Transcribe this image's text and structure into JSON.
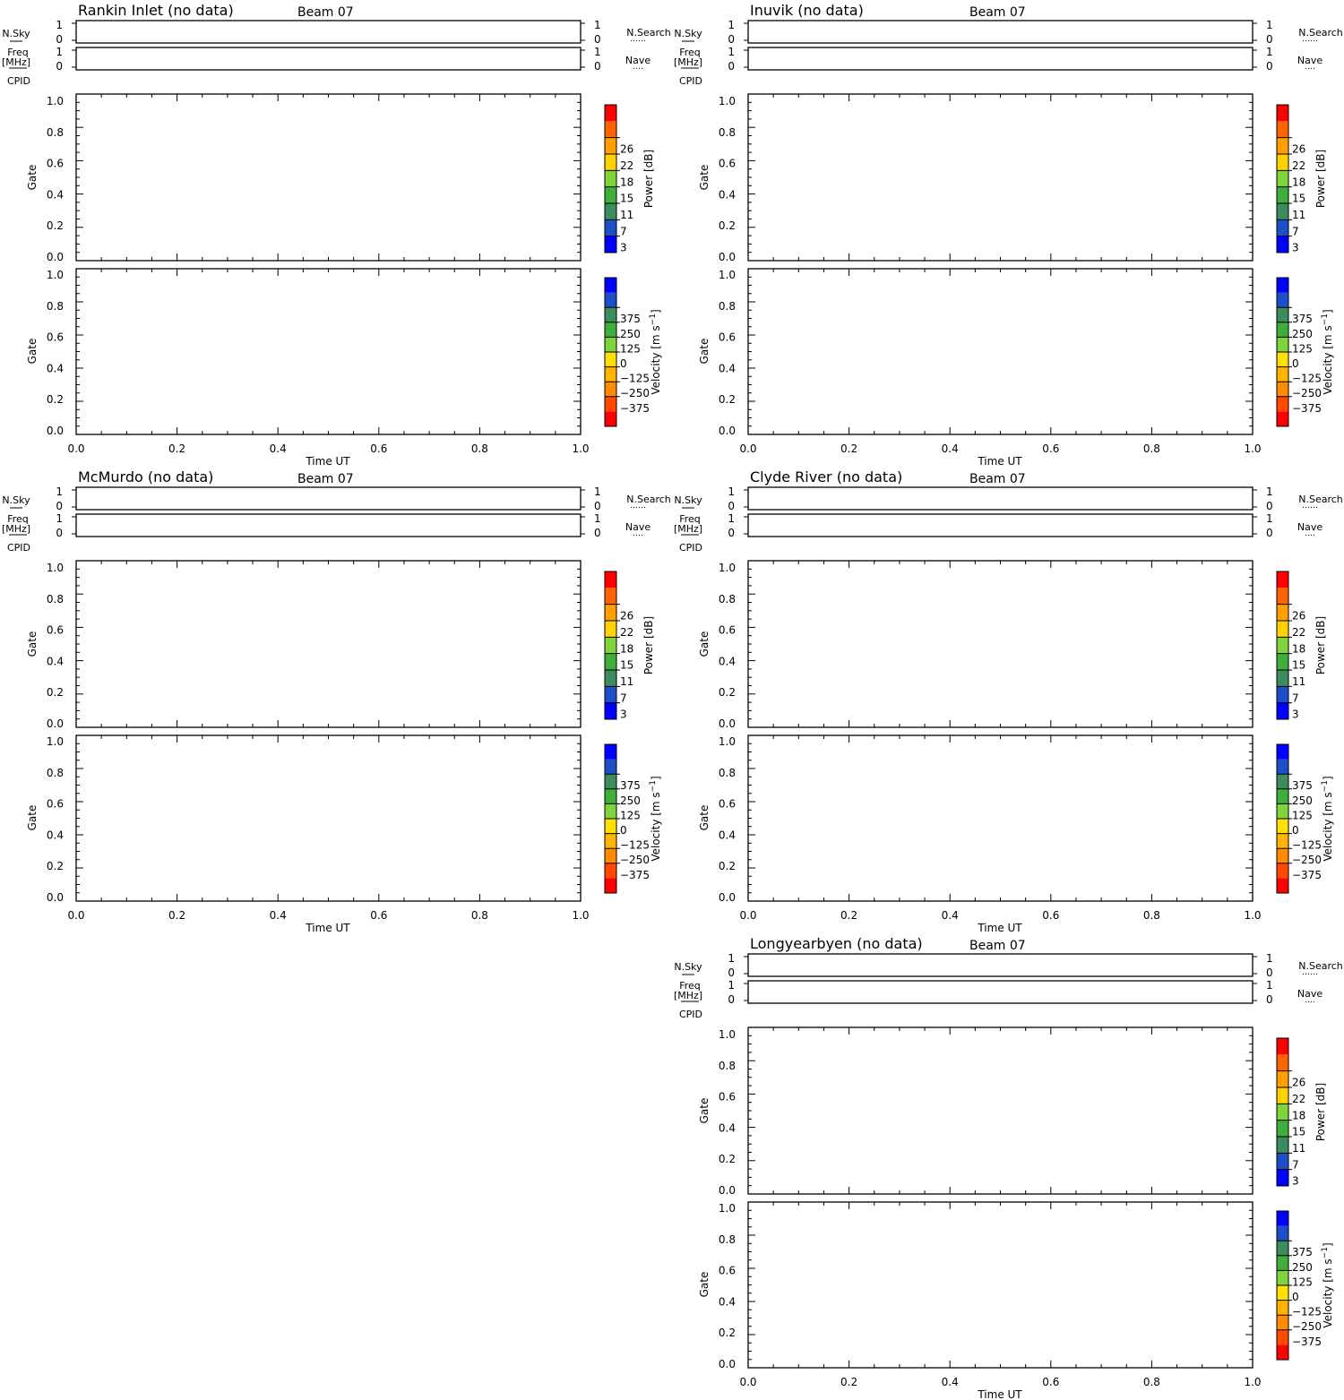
{
  "colors": {
    "power_scale": [
      "#0000ff",
      "#1e4ec8",
      "#3c8c60",
      "#3fae3c",
      "#7fd43c",
      "#ffd200",
      "#ffa000",
      "#ff6400",
      "#ff0000"
    ],
    "velocity_scale": [
      "#ff0000",
      "#ff4a00",
      "#ff8c00",
      "#ffb400",
      "#ffe000",
      "#7fd43c",
      "#3fae3c",
      "#3c8c60",
      "#1e4ec8",
      "#0000ff"
    ]
  },
  "labels": {
    "nsky": "N.Sky",
    "freq": "Freq",
    "mhz": "[MHz]",
    "cpid": "CPID",
    "nsearch": "N.Search",
    "nave": "Nave",
    "gate": "Gate",
    "time_ut": "Time UT",
    "power_label": "Power [dB]",
    "velocity_label": "Velocity [m s",
    "velocity_unit_sup": "−1",
    "velocity_label_end": "]",
    "dotted_search": "……",
    "dotted_nave": "…."
  },
  "chart_data": [
    {
      "type": "heatmap",
      "title": "Rankin Inlet (no data)",
      "beam": "Beam 07",
      "xlabel": "Time UT",
      "ylabel": "Gate",
      "xlim": [
        0,
        1
      ],
      "ylim": [
        0,
        1
      ],
      "xticks": [
        "0.0",
        "0.2",
        "0.4",
        "0.6",
        "0.8",
        "1.0"
      ],
      "yticks": [
        "0.0",
        "0.2",
        "0.4",
        "0.6",
        "0.8",
        "1.0"
      ],
      "small_axis_ticks": [
        "0",
        "1"
      ],
      "power_ticks": [
        "3",
        "7",
        "11",
        "15",
        "18",
        "22",
        "26"
      ],
      "velocity_ticks": [
        "−375",
        "−250",
        "−125",
        "0",
        "125",
        "250",
        "375"
      ]
    },
    {
      "type": "heatmap",
      "title": "Inuvik (no data)",
      "beam": "Beam 07",
      "xlabel": "Time UT",
      "ylabel": "Gate",
      "xlim": [
        0,
        1
      ],
      "ylim": [
        0,
        1
      ],
      "xticks": [
        "0.0",
        "0.2",
        "0.4",
        "0.6",
        "0.8",
        "1.0"
      ],
      "yticks": [
        "0.0",
        "0.2",
        "0.4",
        "0.6",
        "0.8",
        "1.0"
      ],
      "small_axis_ticks": [
        "0",
        "1"
      ],
      "power_ticks": [
        "3",
        "7",
        "11",
        "15",
        "18",
        "22",
        "26"
      ],
      "velocity_ticks": [
        "−375",
        "−250",
        "−125",
        "0",
        "125",
        "250",
        "375"
      ]
    },
    {
      "type": "heatmap",
      "title": "McMurdo (no data)",
      "beam": "Beam 07",
      "xlabel": "Time UT",
      "ylabel": "Gate",
      "xlim": [
        0,
        1
      ],
      "ylim": [
        0,
        1
      ],
      "xticks": [
        "0.0",
        "0.2",
        "0.4",
        "0.6",
        "0.8",
        "1.0"
      ],
      "yticks": [
        "0.0",
        "0.2",
        "0.4",
        "0.6",
        "0.8",
        "1.0"
      ],
      "small_axis_ticks": [
        "0",
        "1"
      ],
      "power_ticks": [
        "3",
        "7",
        "11",
        "15",
        "18",
        "22",
        "26"
      ],
      "velocity_ticks": [
        "−375",
        "−250",
        "−125",
        "0",
        "125",
        "250",
        "375"
      ]
    },
    {
      "type": "heatmap",
      "title": "Clyde River (no data)",
      "beam": "Beam 07",
      "xlabel": "Time UT",
      "ylabel": "Gate",
      "xlim": [
        0,
        1
      ],
      "ylim": [
        0,
        1
      ],
      "xticks": [
        "0.0",
        "0.2",
        "0.4",
        "0.6",
        "0.8",
        "1.0"
      ],
      "yticks": [
        "0.0",
        "0.2",
        "0.4",
        "0.6",
        "0.8",
        "1.0"
      ],
      "small_axis_ticks": [
        "0",
        "1"
      ],
      "power_ticks": [
        "3",
        "7",
        "11",
        "15",
        "18",
        "22",
        "26"
      ],
      "velocity_ticks": [
        "−375",
        "−250",
        "−125",
        "0",
        "125",
        "250",
        "375"
      ]
    },
    {
      "type": "heatmap",
      "title": "Longyearbyen (no data)",
      "beam": "Beam 07",
      "xlabel": "Time UT",
      "ylabel": "Gate",
      "xlim": [
        0,
        1
      ],
      "ylim": [
        0,
        1
      ],
      "xticks": [
        "0.0",
        "0.2",
        "0.4",
        "0.6",
        "0.8",
        "1.0"
      ],
      "yticks": [
        "0.0",
        "0.2",
        "0.4",
        "0.6",
        "0.8",
        "1.0"
      ],
      "small_axis_ticks": [
        "0",
        "1"
      ],
      "power_ticks": [
        "3",
        "7",
        "11",
        "15",
        "18",
        "22",
        "26"
      ],
      "velocity_ticks": [
        "−375",
        "−250",
        "−125",
        "0",
        "125",
        "250",
        "375"
      ]
    }
  ]
}
